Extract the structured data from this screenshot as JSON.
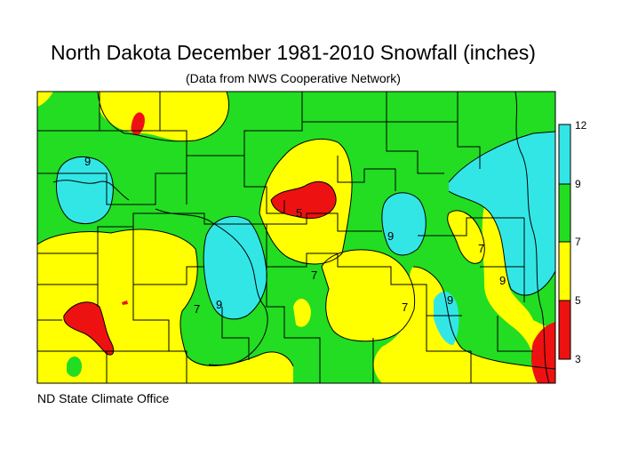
{
  "title": "North Dakota December 1981-2010 Snowfall (inches)",
  "subtitle": "(Data from NWS Cooperative Network)",
  "footer": "ND State Climate Office",
  "legend": {
    "ticks": [
      "12",
      "9",
      "7",
      "5",
      "3"
    ],
    "bands": [
      {
        "range": "9-12",
        "color": "#33e6e6"
      },
      {
        "range": "7-9",
        "color": "#22dd22"
      },
      {
        "range": "5-7",
        "color": "#ffff00"
      },
      {
        "range": "3-5",
        "color": "#ee1111"
      }
    ]
  },
  "contour_labels": [
    "9",
    "5",
    "9",
    "7",
    "7",
    "9",
    "7",
    "9",
    "9",
    "7"
  ],
  "colors": {
    "cyan": "#33e6e6",
    "green": "#22dd22",
    "yellow": "#ffff00",
    "red": "#ee1111",
    "line": "#000000"
  }
}
